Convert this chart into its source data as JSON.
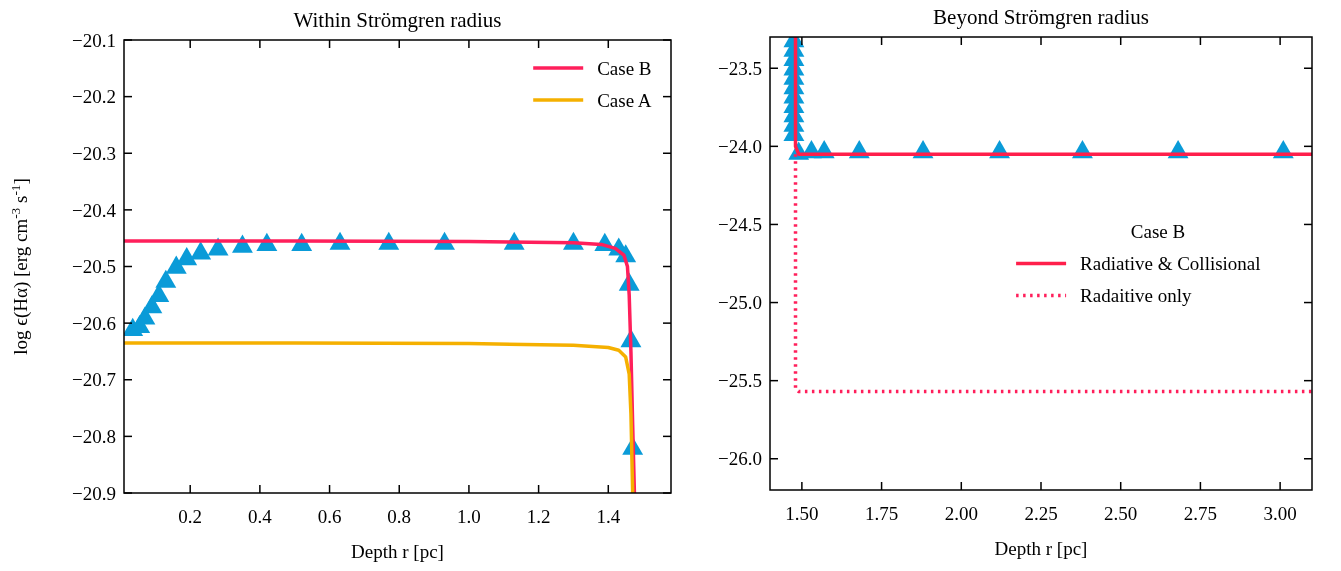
{
  "chart_data": [
    {
      "type": "line",
      "title": "Within Strömgren radius",
      "xlabel": "Depth r [pc]",
      "ylabel": "log ϵ(Hα) [erg cm$^{-3}$ s$^{-1}$]",
      "xlim": [
        0.01,
        1.58
      ],
      "xticks": [
        0.2,
        0.4,
        0.6,
        0.8,
        {
          "value": 1.0,
          "label": "1.0"
        },
        1.2,
        1.4
      ],
      "ylim": [
        -20.9,
        -20.1
      ],
      "yticks": [
        -20.1,
        -20.2,
        -20.3,
        -20.4,
        -20.5,
        -20.6,
        -20.7,
        -20.8,
        -20.9
      ],
      "grid": false,
      "legend": "top right",
      "series": [
        {
          "type": "scatter",
          "marker": "triangle",
          "color": "#0a9bd8",
          "x": [
            0.035,
            0.055,
            0.07,
            0.09,
            0.11,
            0.13,
            0.16,
            0.19,
            0.23,
            0.28,
            0.35,
            0.42,
            0.52,
            0.63,
            0.77,
            0.93,
            1.13,
            1.3,
            1.39,
            1.43,
            1.45,
            1.46,
            1.465,
            1.47
          ],
          "values": [
            -20.61,
            -20.605,
            -20.59,
            -20.57,
            -20.55,
            -20.525,
            -20.5,
            -20.485,
            -20.475,
            -20.468,
            -20.463,
            -20.46,
            -20.46,
            -20.458,
            -20.458,
            -20.458,
            -20.458,
            -20.458,
            -20.46,
            -20.468,
            -20.48,
            -20.53,
            -20.63,
            -20.82
          ]
        },
        {
          "name": "Case B",
          "color": "#ff1f5b",
          "line_style": "solid",
          "x": [
            0.01,
            0.5,
            1.0,
            1.3,
            1.38,
            1.42,
            1.445,
            1.455,
            1.46,
            1.465,
            1.47,
            1.475
          ],
          "values": [
            -20.455,
            -20.455,
            -20.456,
            -20.458,
            -20.461,
            -20.468,
            -20.48,
            -20.5,
            -20.55,
            -20.65,
            -20.78,
            -20.9
          ]
        },
        {
          "name": "Case A",
          "color": "#f5b000",
          "line_style": "solid",
          "x": [
            0.01,
            0.5,
            1.0,
            1.3,
            1.4,
            1.43,
            1.45,
            1.46,
            1.465,
            1.47
          ],
          "values": [
            -20.635,
            -20.635,
            -20.636,
            -20.639,
            -20.643,
            -20.648,
            -20.66,
            -20.69,
            -20.76,
            -20.9
          ]
        }
      ]
    },
    {
      "type": "line",
      "title": "Beyond Strömgren radius",
      "xlabel": "Depth r [pc]",
      "legend_title": "Case B",
      "xlim": [
        1.4,
        3.1
      ],
      "xticks": [
        {
          "value": 1.5,
          "label": "1.50"
        },
        1.75,
        {
          "value": 2.0,
          "label": "2.00"
        },
        2.25,
        {
          "value": 2.5,
          "label": "2.50"
        },
        2.75,
        {
          "value": 3.0,
          "label": "3.00"
        }
      ],
      "ylim": [
        -26.2,
        -23.3
      ],
      "yticks": [
        {
          "value": -23.5,
          "label": "−23.5"
        },
        {
          "value": -24.0,
          "label": "−24.0"
        },
        {
          "value": -24.5,
          "label": "−24.5"
        },
        {
          "value": -25.0,
          "label": "−25.0"
        },
        {
          "value": -25.5,
          "label": "−25.5"
        },
        {
          "value": -26.0,
          "label": "−26.0"
        }
      ],
      "grid": false,
      "legend": "center right",
      "series": [
        {
          "type": "scatter",
          "marker": "triangle",
          "color": "#0a9bd8",
          "x": [
            1.475,
            1.475,
            1.475,
            1.475,
            1.475,
            1.475,
            1.475,
            1.475,
            1.475,
            1.475,
            1.475,
            1.49,
            1.53,
            1.57,
            1.68,
            1.88,
            2.12,
            2.38,
            2.68,
            3.01
          ],
          "values": [
            -23.32,
            -23.38,
            -23.44,
            -23.5,
            -23.56,
            -23.62,
            -23.68,
            -23.74,
            -23.8,
            -23.86,
            -23.92,
            -24.04,
            -24.03,
            -24.03,
            -24.03,
            -24.03,
            -24.03,
            -24.03,
            -24.03,
            -24.03
          ]
        },
        {
          "name": "Radiative & Collisional",
          "color": "#ff1f4b",
          "line_style": "solid",
          "x": [
            1.48,
            1.48,
            1.49,
            2.0,
            3.1
          ],
          "values": [
            -23.3,
            -24.0,
            -24.05,
            -24.05,
            -24.05
          ]
        },
        {
          "name": "Radaitive only",
          "color": "#ff1f5b",
          "line_style": "dotted",
          "x": [
            1.48,
            1.48,
            1.49,
            2.0,
            3.1
          ],
          "values": [
            -24.05,
            -25.55,
            -25.57,
            -25.57,
            -25.57
          ]
        }
      ]
    }
  ]
}
